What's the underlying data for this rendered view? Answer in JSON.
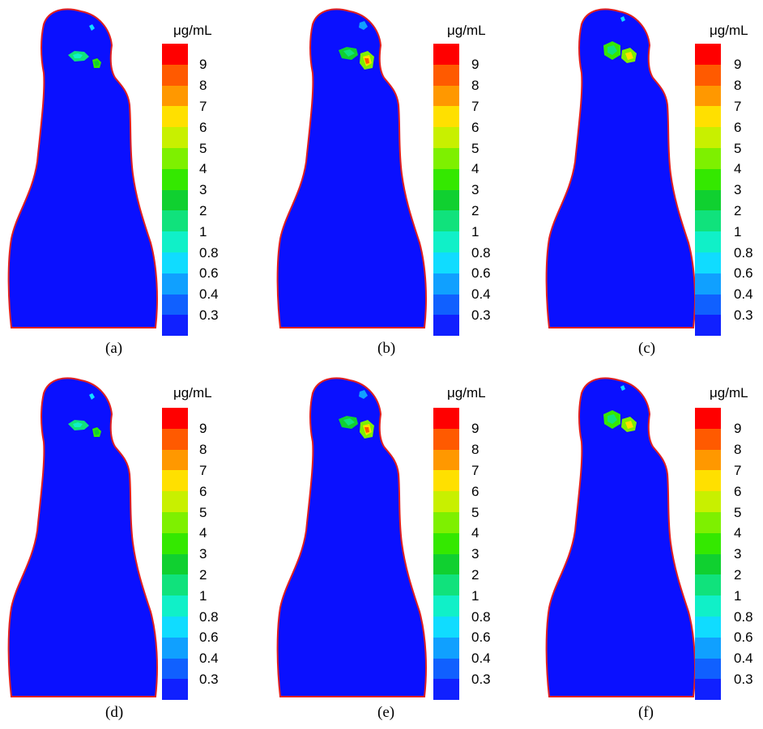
{
  "figure": {
    "unit_label": "μg/mL",
    "colorbar": {
      "levels": [
        "9",
        "8",
        "7",
        "6",
        "5",
        "4",
        "3",
        "2",
        "1",
        "0.8",
        "0.6",
        "0.4",
        "0.3"
      ],
      "colors": [
        "#ff0000",
        "#ff5a00",
        "#ff9800",
        "#ffe000",
        "#c8f000",
        "#7ef000",
        "#34e800",
        "#10d030",
        "#10e27c",
        "#10f0c8",
        "#10dcff",
        "#10a0ff",
        "#1060ff",
        "#1020ff"
      ]
    },
    "background_color": "#0a10ff",
    "outline_color": "#e02020",
    "panels": [
      {
        "caption": "(a)",
        "hotspot": "a"
      },
      {
        "caption": "(b)",
        "hotspot": "b"
      },
      {
        "caption": "(c)",
        "hotspot": "c"
      },
      {
        "caption": "(d)",
        "hotspot": "a"
      },
      {
        "caption": "(e)",
        "hotspot": "b"
      },
      {
        "caption": "(f)",
        "hotspot": "c"
      }
    ]
  }
}
